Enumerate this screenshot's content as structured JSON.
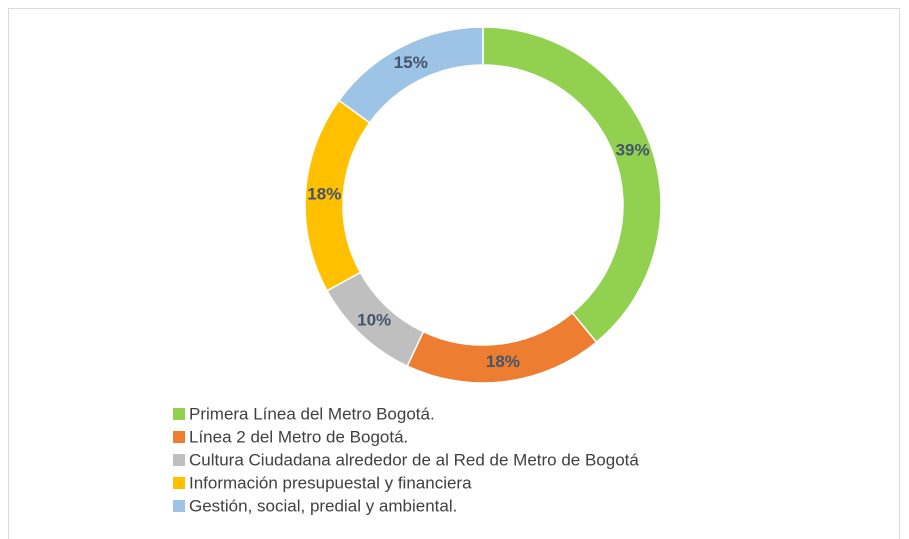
{
  "chart_data": {
    "type": "donut",
    "categories": [
      "Primera Línea del Metro Bogotá.",
      "Línea 2 del Metro de Bogotá.",
      "Cultura Ciudadana alrededor de al Red de Metro de Bogotá",
      "Información presupuestal y financiera",
      "Gestión, social, predial y ambiental."
    ],
    "values": [
      39,
      18,
      10,
      18,
      15
    ],
    "value_labels": [
      "39%",
      "18%",
      "10%",
      "18%",
      "15%"
    ],
    "colors": [
      "#92d050",
      "#ed7d31",
      "#bfbfbf",
      "#ffc000",
      "#9dc3e6"
    ],
    "legend": "bottom"
  }
}
